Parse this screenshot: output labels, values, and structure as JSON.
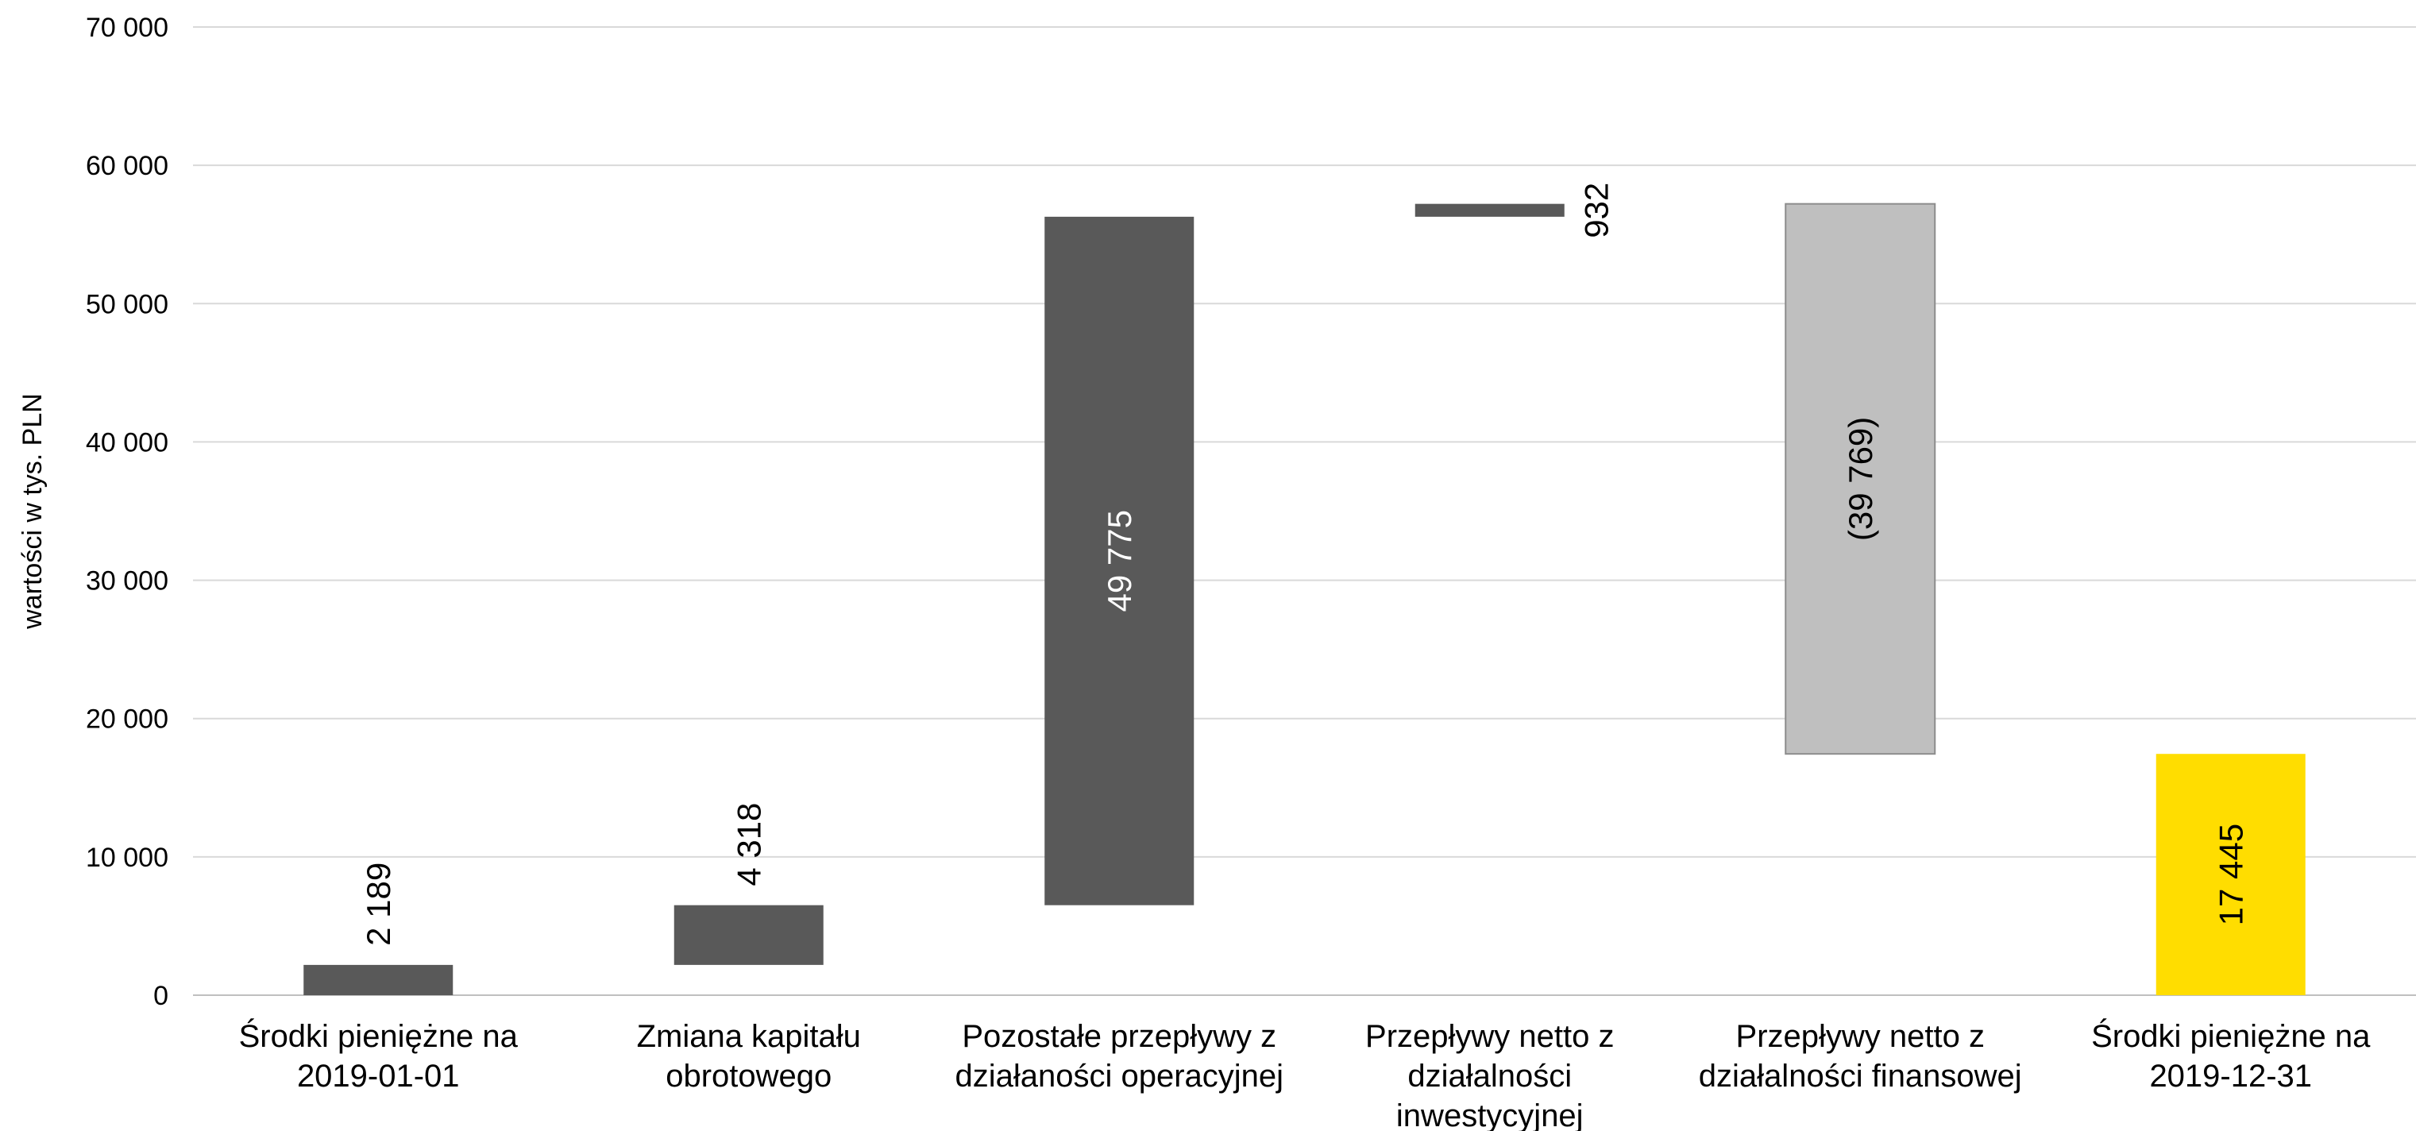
{
  "chart_data": {
    "type": "waterfall",
    "ylabel": "wartości w tys. PLN",
    "ylim": [
      0,
      70000
    ],
    "yticks": [
      0,
      10000,
      20000,
      30000,
      40000,
      50000,
      60000,
      70000
    ],
    "ytick_labels": [
      "0",
      "10 000",
      "20 000",
      "30 000",
      "40 000",
      "50 000",
      "60 000",
      "70 000"
    ],
    "grid": true,
    "categories": [
      [
        "Środki pieniężne na",
        "2019-01-01"
      ],
      [
        "Zmiana kapitału",
        "obrotowego"
      ],
      [
        "Pozostałe przepływy z",
        "działaności operacyjnej"
      ],
      [
        "Przepływy netto z",
        "działalności",
        "inwestycyjnej"
      ],
      [
        "Przepływy netto z",
        "działalności finansowej"
      ],
      [
        "Środki pieniężne na",
        "2019-12-31"
      ]
    ],
    "bars": [
      {
        "base": 0,
        "value": 2189,
        "label": "2 189",
        "color": "#595959",
        "label_color": "#000000",
        "label_position": "above"
      },
      {
        "base": 2189,
        "value": 4318,
        "label": "4 318",
        "color": "#595959",
        "label_color": "#000000",
        "label_position": "above"
      },
      {
        "base": 6507,
        "value": 49775,
        "label": "49 775",
        "color": "#595959",
        "label_color": "#ffffff",
        "label_position": "inside"
      },
      {
        "base": 56282,
        "value": 932,
        "label": "932",
        "color": "#595959",
        "label_color": "#000000",
        "label_position": "right"
      },
      {
        "base": 57214,
        "value": -39769,
        "label": "(39 769)",
        "color": "#bfbfbf",
        "label_color": "#000000",
        "label_position": "inside"
      },
      {
        "base": 0,
        "value": 17445,
        "label": "17 445",
        "color": "#ffdd00",
        "label_color": "#000000",
        "label_position": "inside"
      }
    ]
  }
}
